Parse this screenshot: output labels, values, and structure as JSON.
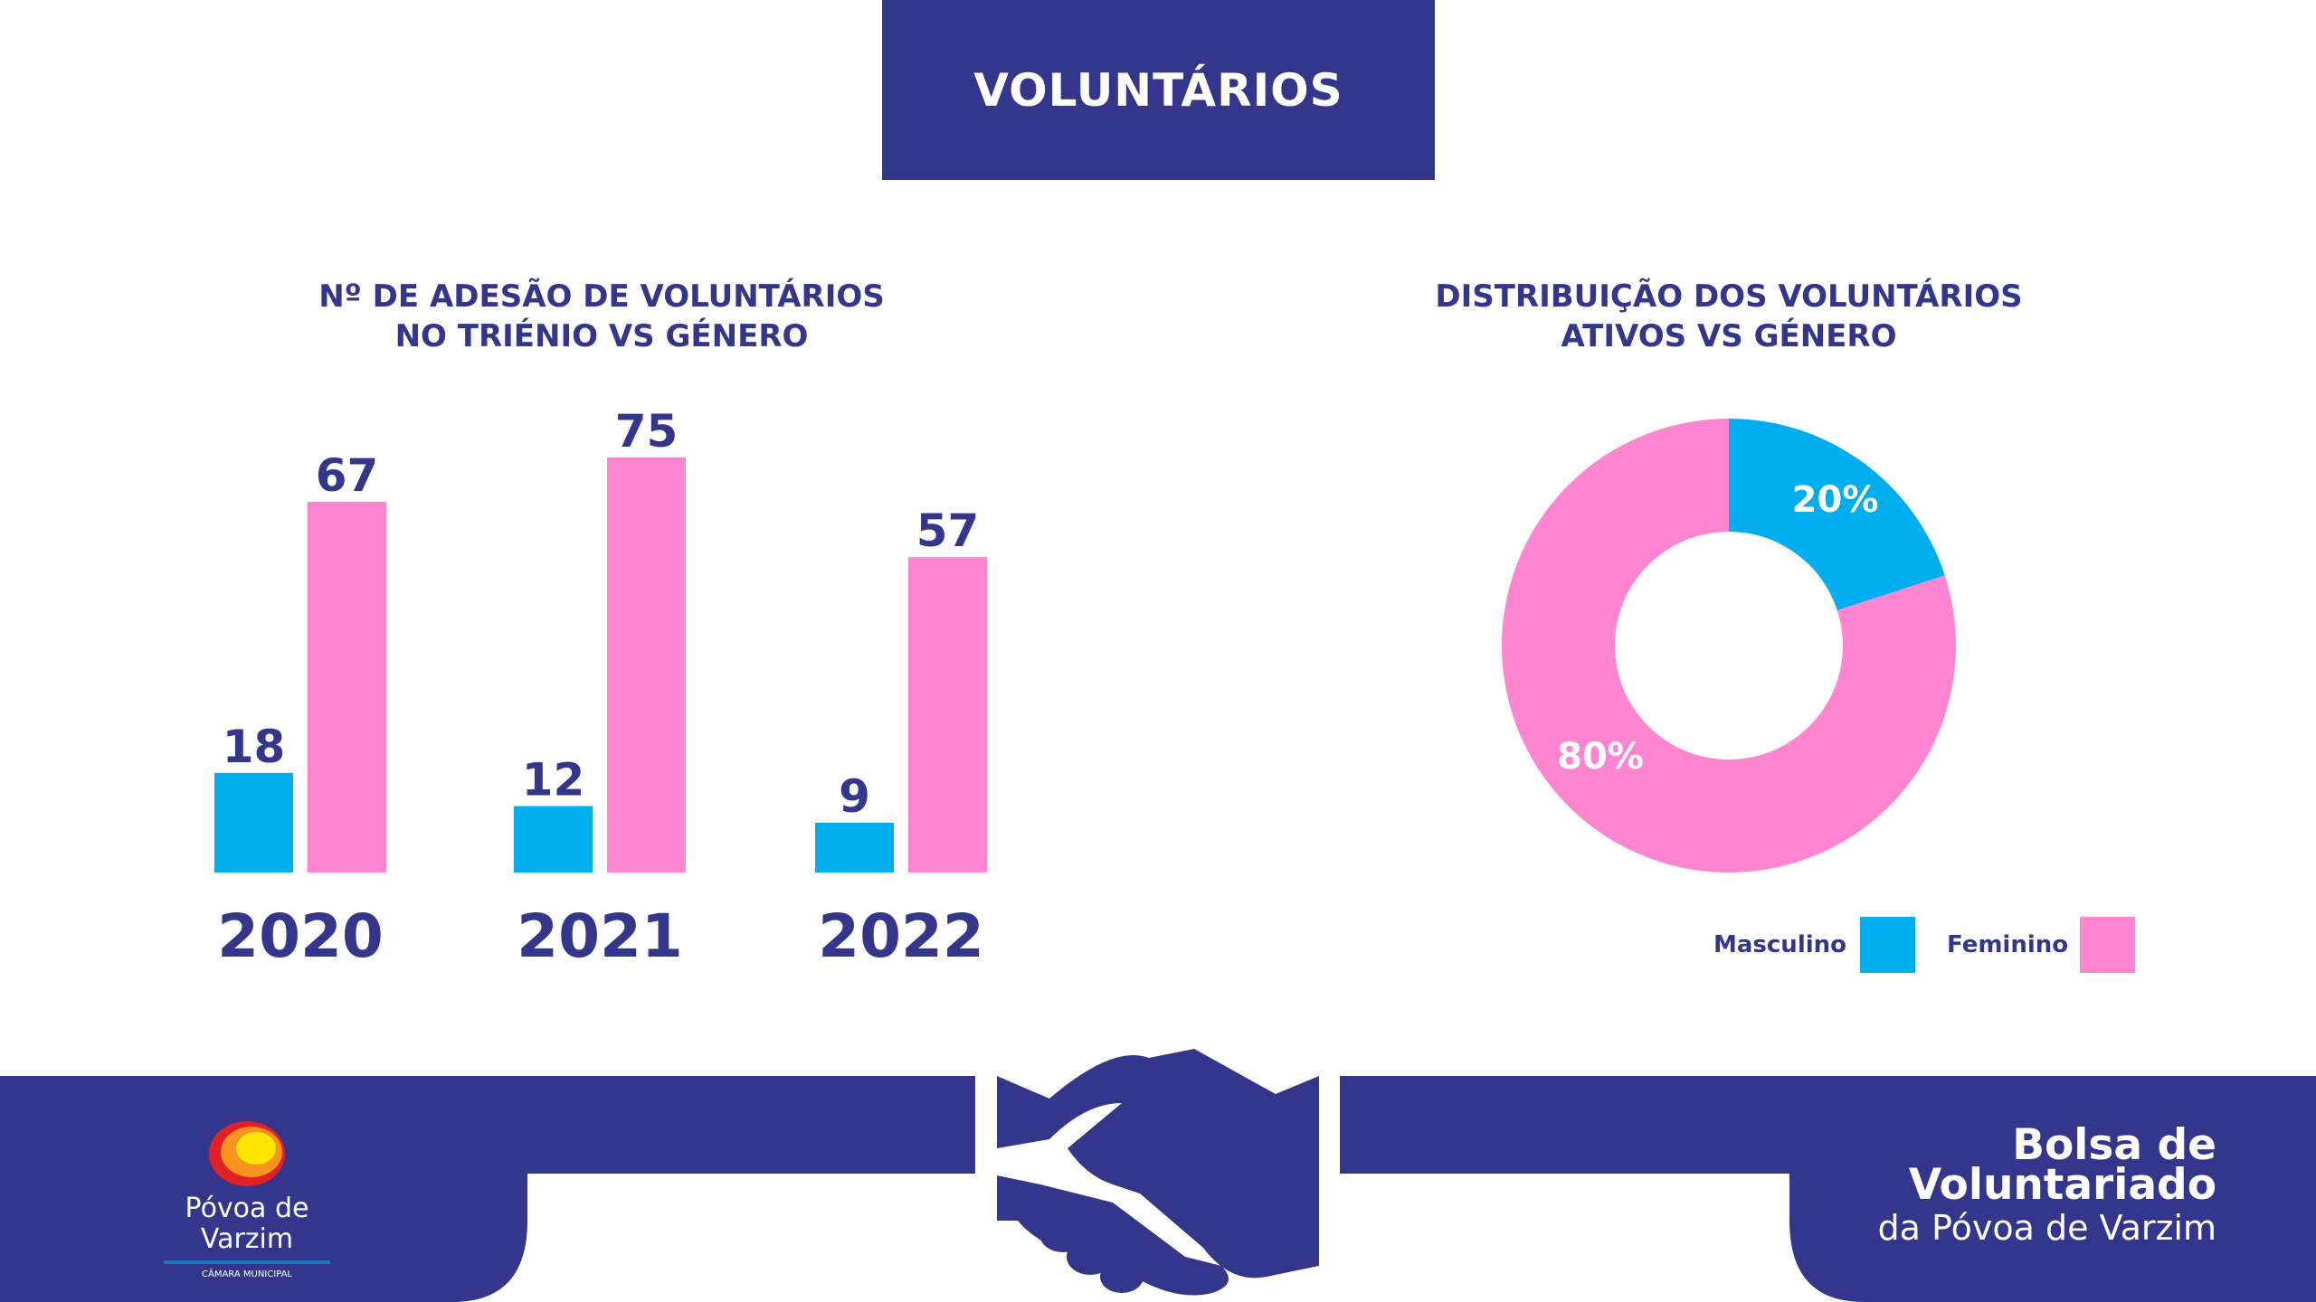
{
  "header": {
    "title": "VOLUNTÁRIOS"
  },
  "colors": {
    "navy": "#33368a",
    "masculino": "#00aeef",
    "feminino": "#ff85d0"
  },
  "chart_data": [
    {
      "type": "bar",
      "title": [
        "Nº DE ADESÃO DE VOLUNTÁRIOS",
        "NO TRIÉNIO VS GÉNERO"
      ],
      "categories": [
        "2020",
        "2021",
        "2022"
      ],
      "series": [
        {
          "name": "Masculino",
          "color": "#00aeef",
          "values": [
            18,
            12,
            9
          ]
        },
        {
          "name": "Feminino",
          "color": "#ff85d0",
          "values": [
            67,
            75,
            57
          ]
        }
      ],
      "ylim": [
        0,
        80
      ],
      "grid": false,
      "data_labels": true
    },
    {
      "type": "pie",
      "donut": true,
      "title": [
        "DISTRIBUIÇÃO DOS VOLUNTÁRIOS",
        "ATIVOS VS GÉNERO"
      ],
      "slices": [
        {
          "name": "Masculino",
          "value": 20,
          "label": "20%",
          "color": "#00aeef"
        },
        {
          "name": "Feminino",
          "value": 80,
          "label": "80%",
          "color": "#ff85d0"
        }
      ],
      "legend": {
        "position": "bottom-right",
        "items": [
          "Masculino",
          "Feminino"
        ]
      }
    }
  ],
  "footer": {
    "logo": {
      "name": "Póvoa de Varzim",
      "subtitle": "CÂMARA MUNICIPAL"
    },
    "brand_lines": [
      "Bolsa de",
      "Voluntariado",
      "da Póvoa de Varzim"
    ],
    "icon": "handshake-icon"
  }
}
